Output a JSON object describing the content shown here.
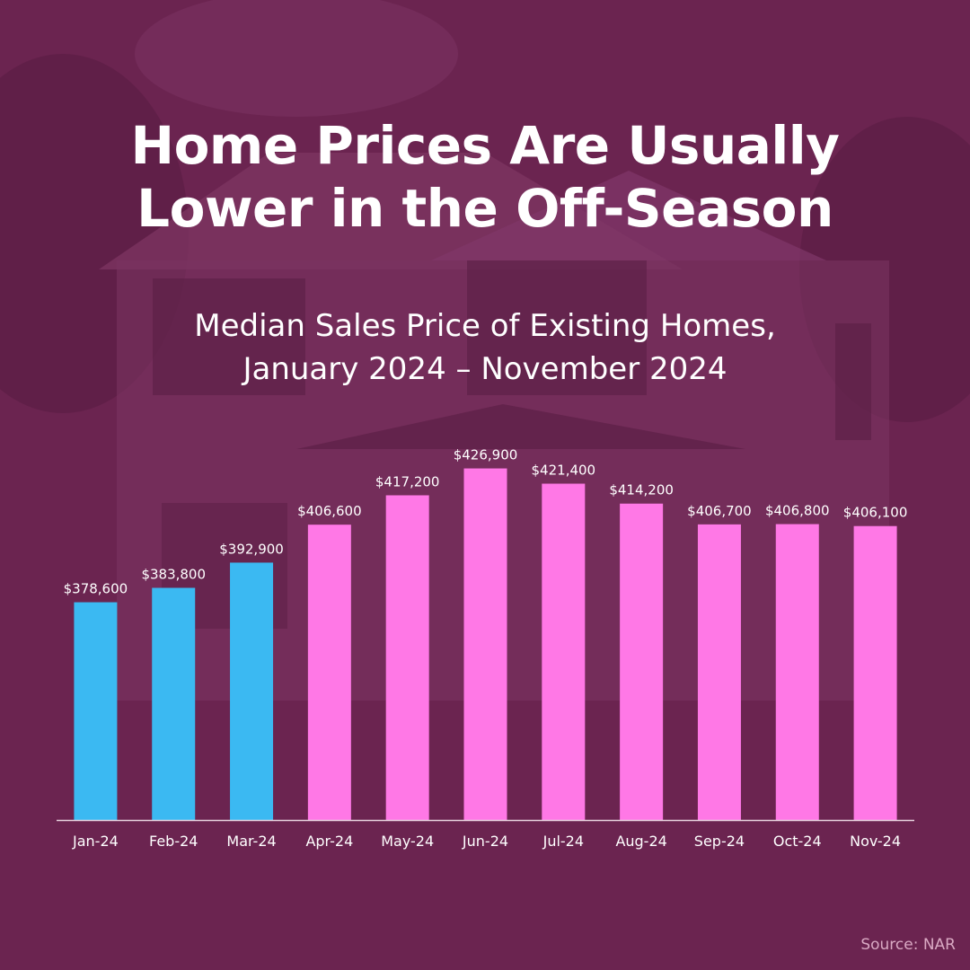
{
  "header": {
    "title_line1": "Home Prices Are Usually",
    "title_line2": "Lower in the Off-Season",
    "subtitle_line1": "Median Sales Price of Existing Homes,",
    "subtitle_line2": "January 2024 – November 2024"
  },
  "footer": {
    "source": "Source: NAR"
  },
  "colors": {
    "background": "#6b2450",
    "off_season_bar": "#3bb9f2",
    "peak_season_bar": "#ff78e6",
    "text": "#ffffff"
  },
  "chart_data": {
    "type": "bar",
    "categories": [
      "Jan-24",
      "Feb-24",
      "Mar-24",
      "Apr-24",
      "May-24",
      "Jun-24",
      "Jul-24",
      "Aug-24",
      "Sep-24",
      "Oct-24",
      "Nov-24"
    ],
    "values": [
      378600,
      383800,
      392900,
      406600,
      417200,
      426900,
      421400,
      414200,
      406700,
      406800,
      406100
    ],
    "value_labels": [
      "$378,600",
      "$383,800",
      "$392,900",
      "$406,600",
      "$417,200",
      "$426,900",
      "$421,400",
      "$414,200",
      "$406,700",
      "$406,800",
      "$406,100"
    ],
    "bar_colors": [
      "#3bb9f2",
      "#3bb9f2",
      "#3bb9f2",
      "#ff78e6",
      "#ff78e6",
      "#ff78e6",
      "#ff78e6",
      "#ff78e6",
      "#ff78e6",
      "#ff78e6",
      "#ff78e6"
    ],
    "ylim": [
      300000,
      430000
    ],
    "grid": false,
    "legend": "none"
  }
}
